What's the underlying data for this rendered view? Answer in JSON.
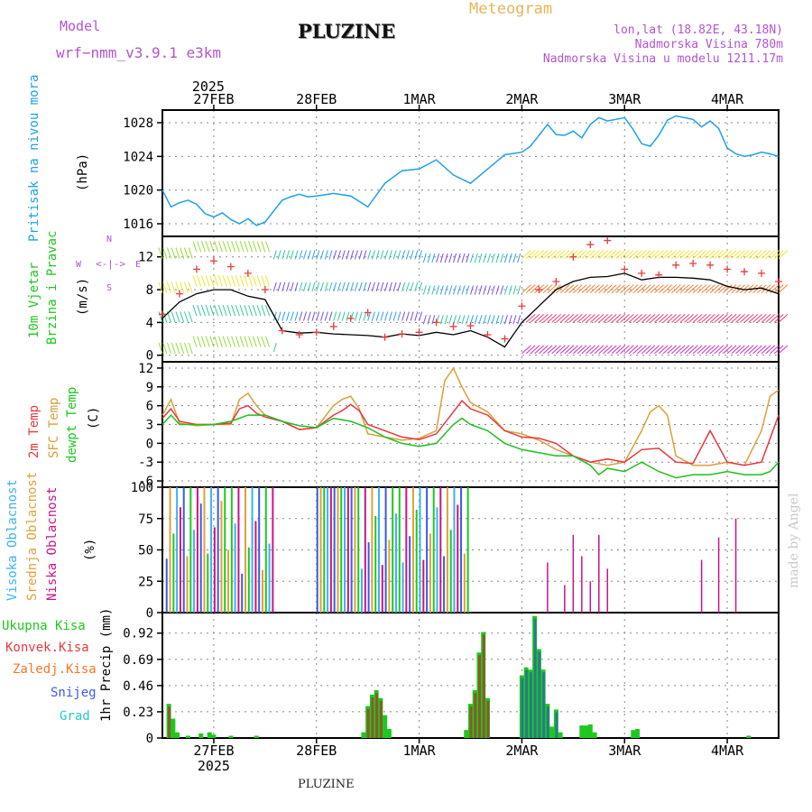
{
  "header": {
    "model_label": "Model",
    "model_name": "wrf−nmm_v3.9.1  e3km",
    "title": "PLUZINE",
    "product": "Meteogram",
    "coords": "lon,lat (18.82E, 43.18N)",
    "elevation": "Nadmorska Visina 780m",
    "model_elevation": "Nadmorska Visina u modelu 1211.17m",
    "credit": "made by Angel",
    "footer_name": "PLUZINE"
  },
  "colors": {
    "pressure": "#1ea0e6",
    "temp2m": "#e8373c",
    "sfc": "#d9a03a",
    "dew": "#1fbf1f",
    "high_cloud": "#3bb3f0",
    "mid_cloud": "#dca23c",
    "low_cloud": "#c8148c",
    "precip_total": "#1ec81e",
    "precip_conv": "#e83c3c",
    "precip_strat": "#f07828",
    "precip_snow": "#3c5ae6",
    "precip_graupel": "#28c8c8",
    "model": "#b055d0",
    "product": "#e8b45a"
  },
  "chart_data": {
    "type": "meteogram",
    "x_top_labels": [
      "2025",
      "27FEB",
      "28FEB",
      "1MAR",
      "2MAR",
      "3MAR",
      "4MAR"
    ],
    "x_bottom_labels": [
      "27FEB",
      "2025",
      "28FEB",
      "1MAR",
      "2MAR",
      "3MAR",
      "4MAR"
    ],
    "x_range_hours": [
      0,
      144
    ],
    "day_boundaries_hours": [
      12,
      36,
      60,
      84,
      108,
      132
    ],
    "panels": [
      {
        "name": "pressure",
        "ylabel_left": "Pritisak na nivou mora",
        "unit": "(hPa)",
        "ylim": [
          1014.5,
          1029.5
        ],
        "yticks": [
          1016,
          1020,
          1024,
          1028
        ],
        "series": [
          {
            "name": "MSLP",
            "x": [
              0,
              2,
              4,
              6,
              8,
              10,
              12,
              14,
              16,
              18,
              20,
              22,
              24,
              26,
              28,
              30,
              32,
              34,
              36,
              40,
              44,
              48,
              52,
              56,
              60,
              64,
              68,
              72,
              76,
              80,
              84,
              86,
              88,
              90,
              92,
              94,
              96,
              98,
              100,
              102,
              104,
              108,
              110,
              112,
              114,
              116,
              118,
              120,
              124,
              126,
              128,
              130,
              132,
              134,
              136,
              138,
              140,
              142,
              144
            ],
            "y": [
              1020,
              1018,
              1018.5,
              1018.8,
              1018.3,
              1017.2,
              1016.8,
              1017.3,
              1016.5,
              1016.0,
              1016.6,
              1015.8,
              1016.2,
              1017.5,
              1018.8,
              1019.2,
              1019.5,
              1019.2,
              1019.3,
              1019.6,
              1019.3,
              1018.0,
              1020.8,
              1022.3,
              1022.5,
              1023.6,
              1021.8,
              1020.8,
              1022.5,
              1024.2,
              1024.5,
              1025.2,
              1026.5,
              1027.8,
              1026.6,
              1026.5,
              1027.0,
              1026.2,
              1027.8,
              1028.6,
              1028.2,
              1028.6,
              1027.2,
              1025.5,
              1025.2,
              1026.5,
              1028.3,
              1028.8,
              1028.4,
              1027.5,
              1028.2,
              1027.3,
              1025.0,
              1024.3,
              1024.0,
              1024.2,
              1024.5,
              1024.3,
              1024.0
            ]
          }
        ]
      },
      {
        "name": "wind",
        "ylabel_left": "10m Vjetar",
        "ylabel_left2": "Brzina i Pravac",
        "unit": "(m/s)",
        "direction_legend": [
          "N",
          "W",
          "E",
          "S"
        ],
        "ylim": [
          -0.8,
          14.5
        ],
        "yticks": [
          0,
          4,
          8,
          12
        ],
        "series": [
          {
            "name": "speed",
            "x": [
              0,
              4,
              8,
              12,
              16,
              20,
              24,
              28,
              32,
              36,
              40,
              44,
              48,
              52,
              56,
              60,
              64,
              68,
              72,
              76,
              80,
              84,
              88,
              92,
              96,
              100,
              104,
              108,
              112,
              116,
              120,
              124,
              128,
              132,
              136,
              140,
              144
            ],
            "y": [
              4.5,
              6.5,
              7.5,
              8.0,
              8.0,
              7.2,
              6.8,
              3.0,
              2.7,
              2.8,
              2.6,
              2.5,
              2.4,
              2.2,
              2.6,
              2.4,
              2.8,
              2.5,
              3.0,
              2.2,
              1.0,
              4.0,
              6.0,
              8.0,
              9.0,
              9.5,
              9.6,
              10.0,
              9.2,
              9.5,
              9.5,
              9.4,
              9.2,
              8.4,
              8.0,
              8.2,
              7.5
            ]
          },
          {
            "name": "gust",
            "x": [
              0,
              4,
              8,
              12,
              16,
              20,
              24,
              28,
              32,
              36,
              40,
              44,
              48,
              52,
              56,
              60,
              64,
              68,
              72,
              76,
              80,
              84,
              88,
              92,
              96,
              100,
              104,
              108,
              112,
              116,
              120,
              124,
              128,
              132,
              136,
              140,
              144
            ],
            "y": [
              5.0,
              7.5,
              10.5,
              11.5,
              10.8,
              10.0,
              8.0,
              3.0,
              2.5,
              2.8,
              3.5,
              4.5,
              5.2,
              2.2,
              2.6,
              2.8,
              4.0,
              3.5,
              3.6,
              2.5,
              2.0,
              6.0,
              8.0,
              9.0,
              12.0,
              13.5,
              14.0,
              10.5,
              10.0,
              9.8,
              11.0,
              11.2,
              11.0,
              10.5,
              10.2,
              10.0,
              9.0
            ]
          }
        ]
      },
      {
        "name": "temperature",
        "ylabel_left": "2m Temp",
        "ylabel_left2": "SFC Temp",
        "ylabel_left3": "dewpt Temp",
        "unit": "(C)",
        "ylim": [
          -7,
          13
        ],
        "yticks": [
          -6,
          -3,
          0,
          3,
          6,
          9,
          12
        ],
        "series": [
          {
            "name": "2m Temp",
            "x": [
              0,
              2,
              4,
              8,
              12,
              16,
              18,
              20,
              22,
              24,
              28,
              32,
              36,
              40,
              42,
              44,
              46,
              48,
              52,
              56,
              60,
              64,
              68,
              70,
              72,
              76,
              80,
              84,
              88,
              92,
              96,
              100,
              104,
              108,
              112,
              116,
              120,
              124,
              128,
              132,
              136,
              140,
              144
            ],
            "y": [
              4.0,
              5.5,
              3.5,
              3.0,
              3.0,
              3.2,
              5.5,
              6.0,
              4.8,
              4.2,
              3.5,
              2.2,
              2.5,
              4.5,
              5.2,
              6.2,
              5.2,
              3.0,
              2.0,
              1.0,
              0.6,
              1.5,
              5.0,
              6.8,
              5.5,
              4.5,
              2.0,
              1.0,
              0.8,
              0.0,
              -2.0,
              -3.0,
              -2.5,
              -3.0,
              -1.0,
              -0.8,
              -3.0,
              -3.2,
              2.0,
              -3.0,
              -3.5,
              -3.0,
              4.5
            ]
          },
          {
            "name": "SFC Temp",
            "x": [
              0,
              2,
              4,
              8,
              12,
              16,
              18,
              20,
              22,
              24,
              28,
              32,
              36,
              40,
              42,
              44,
              46,
              48,
              52,
              56,
              60,
              64,
              66,
              68,
              70,
              72,
              76,
              80,
              84,
              88,
              92,
              96,
              100,
              104,
              108,
              112,
              114,
              116,
              118,
              120,
              124,
              128,
              132,
              136,
              140,
              142,
              144
            ],
            "y": [
              4.5,
              7.0,
              3.2,
              2.8,
              3.0,
              3.0,
              7.0,
              8.0,
              6.0,
              4.5,
              3.5,
              2.2,
              2.5,
              6.0,
              7.0,
              7.5,
              5.5,
              1.5,
              1.0,
              0.5,
              0.8,
              2.0,
              10.0,
              12.0,
              9.0,
              6.5,
              5.0,
              2.0,
              1.5,
              0.5,
              -1.0,
              -2.0,
              -3.0,
              -3.5,
              -3.0,
              2.0,
              5.0,
              6.0,
              4.5,
              -2.0,
              -3.5,
              -3.5,
              -3.0,
              -3.5,
              2.0,
              7.5,
              8.5
            ]
          },
          {
            "name": "dewpt Temp",
            "x": [
              0,
              2,
              4,
              8,
              12,
              16,
              20,
              24,
              28,
              32,
              36,
              40,
              44,
              48,
              52,
              56,
              60,
              64,
              68,
              70,
              72,
              76,
              80,
              84,
              88,
              92,
              96,
              100,
              102,
              104,
              108,
              112,
              116,
              120,
              124,
              128,
              132,
              136,
              140,
              142,
              144
            ],
            "y": [
              3.0,
              4.5,
              3.0,
              3.0,
              3.0,
              3.5,
              4.5,
              4.5,
              3.5,
              2.8,
              2.5,
              4.0,
              3.5,
              2.5,
              1.0,
              0.0,
              -0.5,
              0.0,
              3.0,
              4.0,
              3.0,
              2.0,
              0.0,
              -1.0,
              -1.5,
              -2.0,
              -2.0,
              -3.5,
              -5.0,
              -4.0,
              -4.5,
              -3.0,
              -4.5,
              -5.5,
              -5.0,
              -5.0,
              -4.5,
              -5.0,
              -5.0,
              -4.5,
              -3.0
            ]
          }
        ]
      },
      {
        "name": "cloud",
        "ylabel_left": "Visoka Oblacnost",
        "ylabel_left2": "Srednja Oblacnost",
        "ylabel_left3": "Niska Oblacnost",
        "unit": "(%)",
        "ylim": [
          0,
          100
        ],
        "yticks": [
          0,
          25,
          50,
          75,
          100
        ],
        "note": "vertical bars mostly reaching 100% from ~1h to ~72h, sparse low cloud after 90h"
      },
      {
        "name": "precip",
        "ylabel_left": "1hr Precip (mm)",
        "legend": [
          "Ukupna Kisa",
          "Konvek.Kisa",
          "Zaledj.Kisa",
          "Snijeg",
          "Grad"
        ],
        "ylim": [
          0,
          1.1
        ],
        "yticks": [
          0,
          0.23,
          0.46,
          0.69,
          0.92
        ],
        "ytick_labels": [
          "0",
          "0.23",
          "0.46",
          "0.69",
          "0.92"
        ],
        "bars": [
          {
            "x": 1.5,
            "total": 0.3
          },
          {
            "x": 2.5,
            "total": 0.17
          },
          {
            "x": 3.5,
            "total": 0.05
          },
          {
            "x": 6,
            "total": 0.02
          },
          {
            "x": 9,
            "total": 0.04
          },
          {
            "x": 11,
            "total": 0.05
          },
          {
            "x": 12,
            "total": 0.03
          },
          {
            "x": 16,
            "total": 0.02
          },
          {
            "x": 22,
            "total": 0.02
          },
          {
            "x": 47,
            "total": 0.05
          },
          {
            "x": 48,
            "total": 0.28
          },
          {
            "x": 49,
            "total": 0.38
          },
          {
            "x": 50,
            "total": 0.42
          },
          {
            "x": 51,
            "total": 0.35
          },
          {
            "x": 52,
            "total": 0.2
          },
          {
            "x": 53,
            "total": 0.08
          },
          {
            "x": 71,
            "total": 0.07
          },
          {
            "x": 72,
            "total": 0.3
          },
          {
            "x": 73,
            "total": 0.42
          },
          {
            "x": 74,
            "total": 0.75
          },
          {
            "x": 75,
            "total": 0.93
          },
          {
            "x": 76,
            "total": 0.35
          },
          {
            "x": 84,
            "total": 0.55
          },
          {
            "x": 85,
            "total": 0.62
          },
          {
            "x": 86,
            "total": 0.6
          },
          {
            "x": 87,
            "total": 1.07
          },
          {
            "x": 88,
            "total": 0.78
          },
          {
            "x": 89,
            "total": 0.6
          },
          {
            "x": 90,
            "total": 0.3
          },
          {
            "x": 91,
            "total": 0.1
          },
          {
            "x": 92,
            "total": 0.25
          },
          {
            "x": 93,
            "total": 0.05
          },
          {
            "x": 98,
            "total": 0.11
          },
          {
            "x": 99,
            "total": 0.11
          },
          {
            "x": 100,
            "total": 0.12
          },
          {
            "x": 101,
            "total": 0.05
          },
          {
            "x": 110,
            "total": 0.07
          },
          {
            "x": 111,
            "total": 0.08
          },
          {
            "x": 137,
            "total": 0.02
          }
        ]
      }
    ]
  }
}
